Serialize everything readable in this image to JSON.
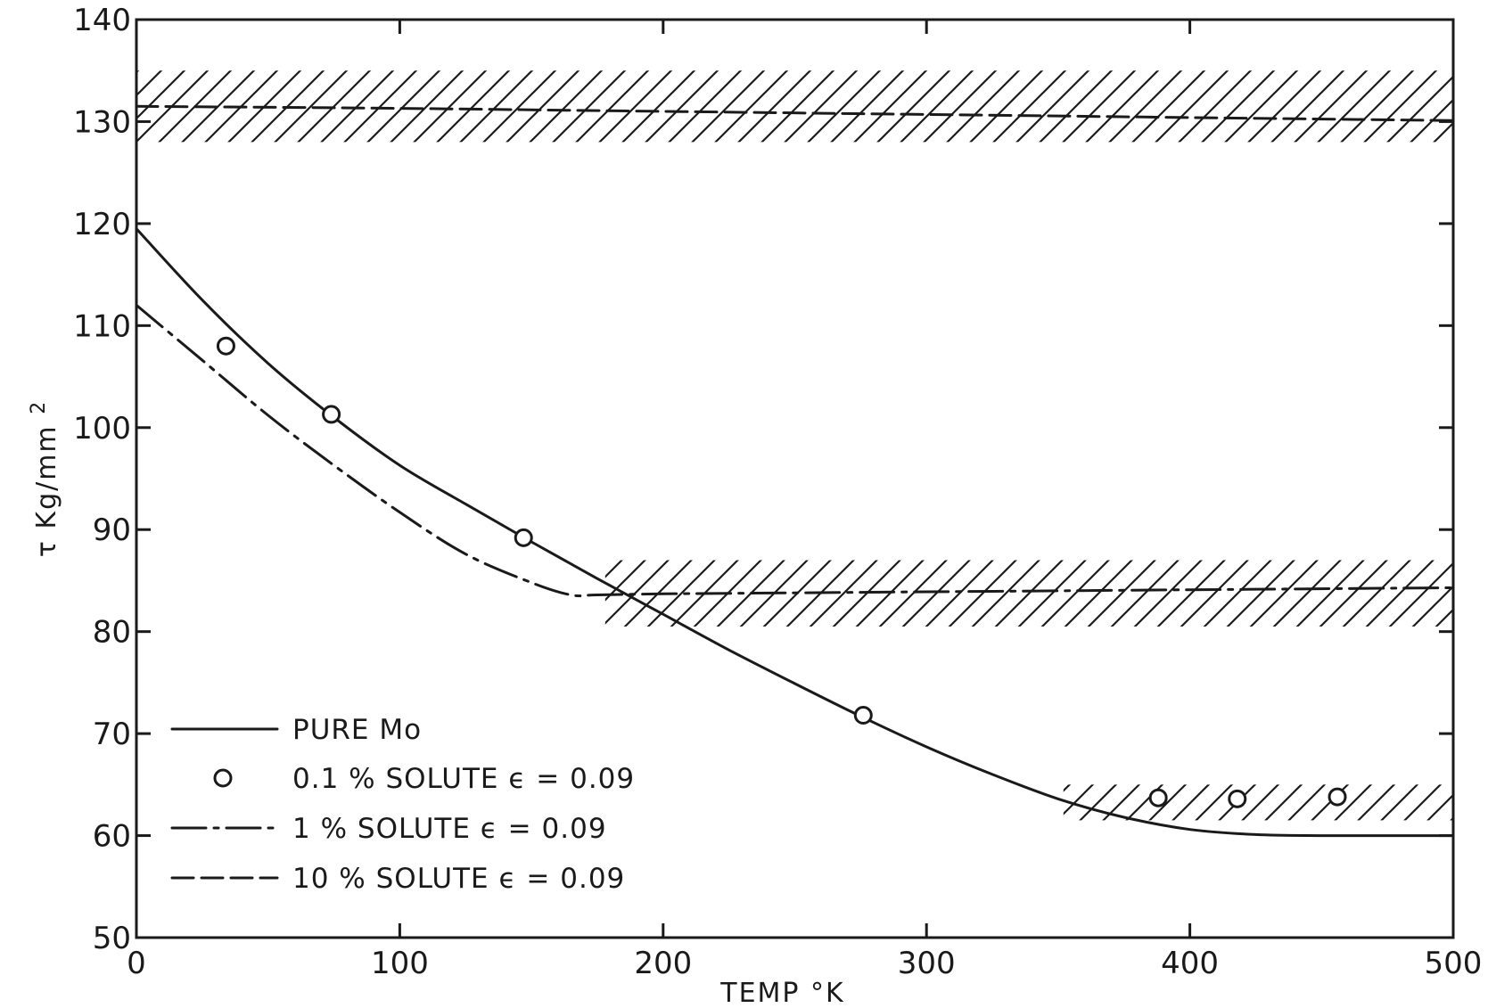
{
  "chart_data": {
    "type": "line",
    "xlabel": "TEMP °K",
    "ylabel_symbol": "τ",
    "ylabel_unit": "Kg/mm",
    "ylabel_sup": "2",
    "xlim": [
      0,
      500
    ],
    "ylim": [
      50,
      140
    ],
    "x_ticks": [
      0,
      100,
      200,
      300,
      400,
      500
    ],
    "y_ticks": [
      50,
      60,
      70,
      80,
      90,
      100,
      110,
      120,
      130,
      140
    ],
    "x_tick_labels": [
      "0",
      "100",
      "200",
      "300",
      "400",
      "500"
    ],
    "y_tick_labels": [
      "50",
      "60",
      "70",
      "80",
      "90",
      "100",
      "110",
      "120",
      "130",
      "140"
    ],
    "grid": false,
    "legend_position": "bottom-left",
    "series": [
      {
        "name": "PURE Mo",
        "style": "solid",
        "x": [
          0,
          25,
          50,
          75,
          100,
          125,
          150,
          175,
          200,
          225,
          250,
          275,
          300,
          325,
          350,
          375,
          400,
          425,
          450,
          475,
          500
        ],
        "y": [
          119.5,
          112.5,
          106.3,
          101,
          96.3,
          92.5,
          88.8,
          85.2,
          81.7,
          78.2,
          74.9,
          71.7,
          68.7,
          66,
          63.6,
          61.8,
          60.6,
          60.1,
          60,
          60,
          60
        ]
      },
      {
        "name": "0.1 % SOLUTE  ϵ = 0.09",
        "style": "circle",
        "x": [
          34,
          74,
          147,
          276,
          388,
          418,
          456
        ],
        "y": [
          108,
          101.3,
          89.2,
          71.8,
          63.7,
          63.6,
          63.8
        ]
      },
      {
        "name": "1 %  SOLUTE  ϵ = 0.09",
        "style": "dashdot",
        "x": [
          0,
          25,
          50,
          75,
          100,
          125,
          150,
          165,
          175,
          200,
          250,
          300,
          350,
          400,
          450,
          500
        ],
        "y": [
          112,
          106.6,
          101.2,
          96.3,
          91.7,
          87.6,
          84.8,
          83.6,
          83.6,
          83.7,
          83.8,
          83.9,
          84,
          84.1,
          84.2,
          84.3
        ]
      },
      {
        "name": "10 %  SOLUTE  ϵ = 0.09",
        "style": "dashed",
        "x": [
          0,
          100,
          200,
          300,
          400,
          500
        ],
        "y": [
          131.5,
          131.3,
          131,
          130.7,
          130.4,
          130.1
        ]
      }
    ],
    "bands": [
      {
        "x": [
          0,
          500
        ],
        "y": [
          128,
          135
        ]
      },
      {
        "x": [
          178,
          500
        ],
        "y": [
          80.5,
          87
        ]
      },
      {
        "x": [
          352,
          500
        ],
        "y": [
          61.5,
          65
        ]
      }
    ],
    "colors": {
      "ink": "#1a1a1a",
      "background": "#ffffff"
    }
  }
}
